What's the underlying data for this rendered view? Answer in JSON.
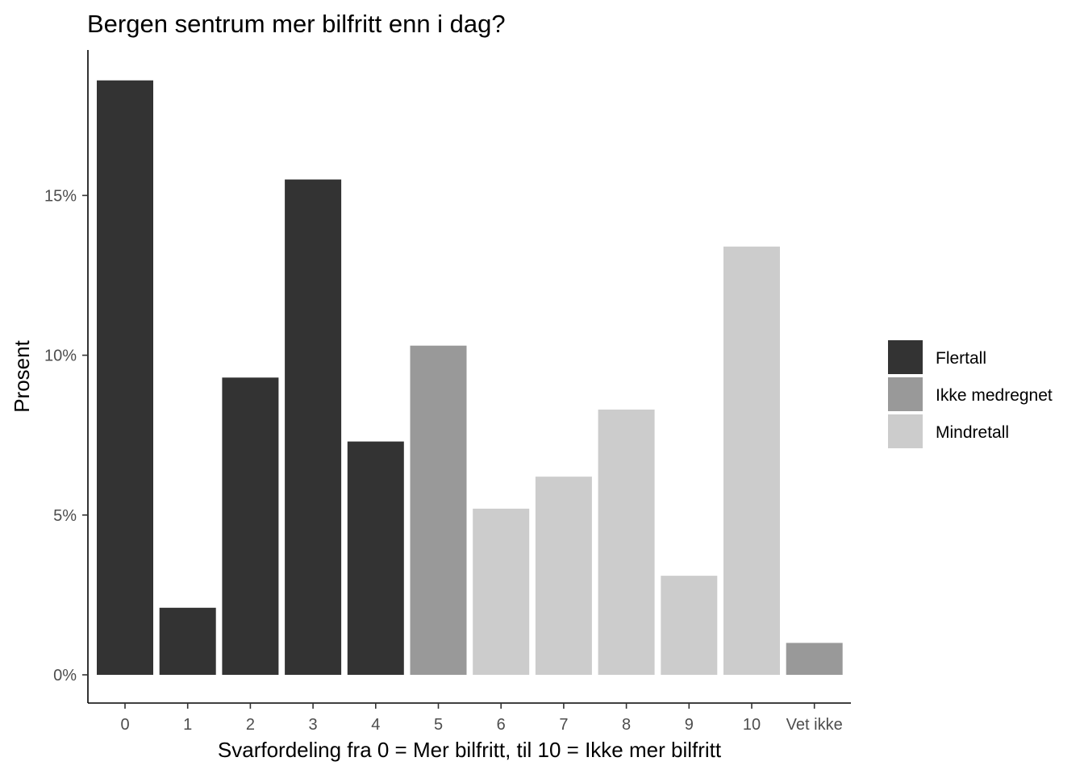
{
  "chart_data": {
    "type": "bar",
    "title": "Bergen sentrum mer bilfritt enn i dag?",
    "xlabel": "Svarfordeling fra 0 = Mer bilfritt, til 10 = Ikke mer bilfritt",
    "ylabel": "Prosent",
    "categories": [
      "0",
      "1",
      "2",
      "3",
      "4",
      "5",
      "6",
      "7",
      "8",
      "9",
      "10",
      "Vet ikke"
    ],
    "values": [
      18.6,
      2.1,
      9.3,
      15.5,
      7.3,
      10.3,
      5.2,
      6.2,
      8.3,
      3.1,
      13.4,
      1.0
    ],
    "groups": [
      "Flertall",
      "Flertall",
      "Flertall",
      "Flertall",
      "Flertall",
      "Ikke medregnet",
      "Mindretall",
      "Mindretall",
      "Mindretall",
      "Mindretall",
      "Mindretall",
      "Ikke medregnet"
    ],
    "ylim": [
      0,
      18.6
    ],
    "yticks": [
      0,
      5,
      10,
      15
    ],
    "ytick_labels": [
      "0%",
      "5%",
      "10%",
      "15%"
    ],
    "legend": {
      "position": "right",
      "entries": [
        {
          "name": "Flertall",
          "color": "#333333"
        },
        {
          "name": "Ikke medregnet",
          "color": "#999999"
        },
        {
          "name": "Mindretall",
          "color": "#cccccc"
        }
      ]
    },
    "grid": false
  }
}
